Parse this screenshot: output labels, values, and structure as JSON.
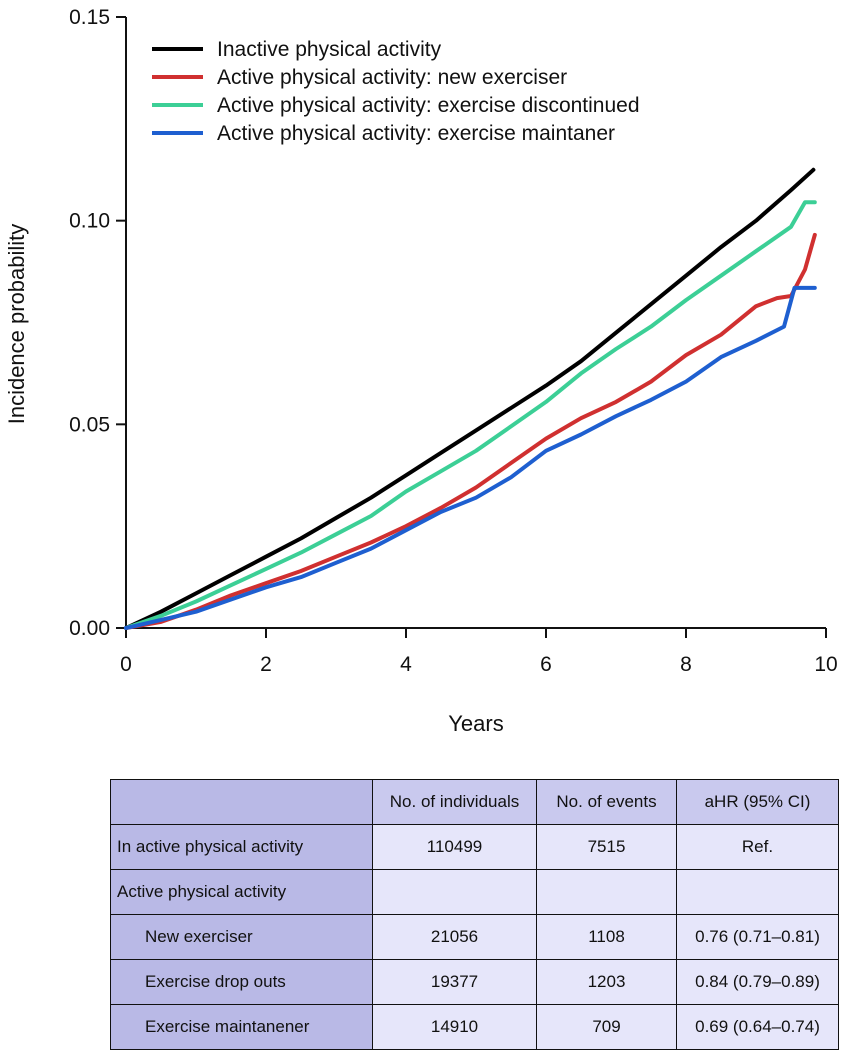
{
  "chart_data": {
    "type": "line",
    "title": "",
    "xlabel": "Years",
    "ylabel": "Incidence probability",
    "xlim": [
      0,
      10
    ],
    "ylim": [
      0,
      0.15
    ],
    "xticks": [
      "0",
      "2",
      "4",
      "6",
      "8",
      "10"
    ],
    "yticks": [
      "0.00",
      "0.05",
      "0.10",
      "0.15"
    ],
    "legend_position": "top-left",
    "series": [
      {
        "name": "Inactive physical activity",
        "color": "#000000",
        "x": [
          0,
          0.5,
          1,
          1.5,
          2,
          2.5,
          3,
          3.5,
          4,
          4.5,
          5,
          5.5,
          6,
          6.5,
          7,
          7.5,
          8,
          8.5,
          9,
          9.5,
          9.82
        ],
        "y": [
          0,
          0.004,
          0.0085,
          0.013,
          0.0175,
          0.022,
          0.027,
          0.032,
          0.0375,
          0.043,
          0.0485,
          0.054,
          0.0595,
          0.0655,
          0.0725,
          0.0795,
          0.0865,
          0.0935,
          0.1,
          0.1075,
          0.1125
        ]
      },
      {
        "name": "Active physical activity: new exerciser",
        "color": "#d03030",
        "x": [
          0,
          0.5,
          1,
          1.5,
          2,
          2.5,
          3,
          3.5,
          4,
          4.5,
          5,
          5.5,
          6,
          6.5,
          7,
          7.5,
          8,
          8.5,
          9,
          9.3,
          9.5,
          9.7,
          9.84
        ],
        "y": [
          0,
          0.0015,
          0.0045,
          0.008,
          0.011,
          0.014,
          0.0175,
          0.021,
          0.025,
          0.0295,
          0.0345,
          0.0405,
          0.0465,
          0.0515,
          0.0555,
          0.0605,
          0.067,
          0.072,
          0.079,
          0.081,
          0.0815,
          0.088,
          0.0965
        ]
      },
      {
        "name": "Active physical activity: exercise discontinued",
        "color": "#3ccf96",
        "x": [
          0,
          0.5,
          1,
          1.5,
          2,
          2.5,
          3,
          3.5,
          4,
          4.5,
          5,
          5.5,
          6,
          6.5,
          7,
          7.5,
          8,
          8.5,
          9,
          9.5,
          9.7,
          9.84
        ],
        "y": [
          0,
          0.003,
          0.0065,
          0.0105,
          0.0145,
          0.0185,
          0.023,
          0.0275,
          0.0335,
          0.0385,
          0.0435,
          0.0495,
          0.0555,
          0.0625,
          0.0685,
          0.074,
          0.0805,
          0.0865,
          0.0925,
          0.0985,
          0.1045,
          0.1045
        ]
      },
      {
        "name": "Active physical activity: exercise maintaner",
        "color": "#1e5fd0",
        "x": [
          0,
          0.5,
          1,
          1.5,
          2,
          2.5,
          3,
          3.5,
          4,
          4.5,
          5,
          5.5,
          6,
          6.5,
          7,
          7.5,
          8,
          8.5,
          9,
          9.4,
          9.55,
          9.84
        ],
        "y": [
          0,
          0.002,
          0.004,
          0.007,
          0.01,
          0.0125,
          0.016,
          0.0195,
          0.024,
          0.0285,
          0.032,
          0.037,
          0.0435,
          0.0475,
          0.052,
          0.056,
          0.0605,
          0.0665,
          0.0705,
          0.074,
          0.0835,
          0.0835
        ]
      }
    ]
  },
  "table": {
    "headers": [
      "",
      "No. of individuals",
      "No. of events",
      "aHR (95% CI)"
    ],
    "rows": [
      {
        "label": "In active physical activity",
        "individuals": "110499",
        "events": "7515",
        "ahr": "Ref."
      },
      {
        "label": "Active physical activity",
        "individuals": "",
        "events": "",
        "ahr": ""
      },
      {
        "label": "New exerciser",
        "individuals": "21056",
        "events": "1108",
        "ahr": "0.76 (0.71–0.81)"
      },
      {
        "label": "Exercise drop outs",
        "individuals": "19377",
        "events": "1203",
        "ahr": "0.84 (0.79–0.89)"
      },
      {
        "label": "Exercise maintanener",
        "individuals": "14910",
        "events": "709",
        "ahr": "0.69 (0.64–0.74)"
      }
    ]
  }
}
